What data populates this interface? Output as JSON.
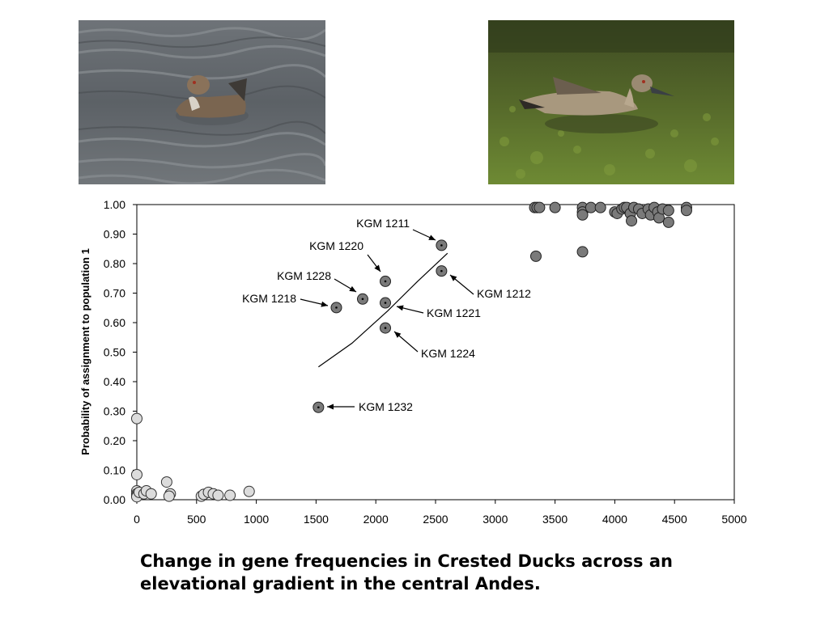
{
  "photos": [
    {
      "name": "crested-duck-photo-grey-water",
      "icon": "duck-on-grey-water-photo"
    },
    {
      "name": "crested-duck-photo-green-water",
      "icon": "duck-on-green-water-photo"
    }
  ],
  "caption": {
    "line1": "Change in gene frequencies in Crested Ducks across an",
    "line2": "elevational gradient in the central Andes."
  },
  "chart_data": {
    "type": "scatter",
    "title": "",
    "xlabel": "",
    "ylabel": "Probability of assignment to population 1",
    "xlim": [
      0,
      5000
    ],
    "ylim": [
      0,
      1
    ],
    "x_ticks": [
      "0",
      "500",
      "1000",
      "1500",
      "2000",
      "2500",
      "3000",
      "3500",
      "4000",
      "4500",
      "5000"
    ],
    "y_ticks": [
      "0.00",
      "0.10",
      "0.20",
      "0.30",
      "0.40",
      "0.50",
      "0.60",
      "0.70",
      "0.80",
      "0.90",
      "1.00"
    ],
    "grid": false,
    "colors": {
      "low": "#dcdcdc",
      "high": "#7a7a7a",
      "labelled": "#7a7a7a"
    },
    "series": [
      {
        "group": "low-elevation",
        "points": [
          [
            0,
            0.275
          ],
          [
            0,
            0.085
          ],
          [
            0,
            0.03
          ],
          [
            0,
            0.02
          ],
          [
            0,
            0.015
          ],
          [
            0,
            0.01
          ],
          [
            20,
            0.025
          ],
          [
            60,
            0.02
          ],
          [
            80,
            0.03
          ],
          [
            120,
            0.02
          ],
          [
            250,
            0.06
          ],
          [
            280,
            0.02
          ],
          [
            270,
            0.012
          ],
          [
            540,
            0.012
          ],
          [
            560,
            0.018
          ],
          [
            600,
            0.025
          ],
          [
            640,
            0.02
          ],
          [
            680,
            0.015
          ],
          [
            780,
            0.015
          ],
          [
            940,
            0.028
          ]
        ]
      },
      {
        "group": "high-elevation",
        "points": [
          [
            3330,
            0.99
          ],
          [
            3350,
            0.99
          ],
          [
            3370,
            0.99
          ],
          [
            3500,
            0.99
          ],
          [
            3340,
            0.825
          ],
          [
            3730,
            0.84
          ],
          [
            3730,
            0.99
          ],
          [
            3730,
            0.975
          ],
          [
            3730,
            0.965
          ],
          [
            3800,
            0.99
          ],
          [
            3880,
            0.99
          ],
          [
            4000,
            0.975
          ],
          [
            4020,
            0.97
          ],
          [
            4060,
            0.985
          ],
          [
            4080,
            0.99
          ],
          [
            4100,
            0.99
          ],
          [
            4130,
            0.97
          ],
          [
            4140,
            0.945
          ],
          [
            4160,
            0.99
          ],
          [
            4200,
            0.985
          ],
          [
            4230,
            0.97
          ],
          [
            4280,
            0.985
          ],
          [
            4300,
            0.965
          ],
          [
            4330,
            0.99
          ],
          [
            4360,
            0.975
          ],
          [
            4370,
            0.955
          ],
          [
            4400,
            0.985
          ],
          [
            4450,
            0.94
          ],
          [
            4450,
            0.98
          ],
          [
            4600,
            0.99
          ],
          [
            4600,
            0.98
          ]
        ]
      },
      {
        "group": "labelled",
        "points": [
          {
            "label": "KGM 1211",
            "x": 2550,
            "y": 0.862
          },
          {
            "label": "KGM 1220",
            "x": 2080,
            "y": 0.74
          },
          {
            "label": "KGM 1228",
            "x": 1890,
            "y": 0.68
          },
          {
            "label": "KGM 1218",
            "x": 1670,
            "y": 0.651
          },
          {
            "label": "KGM 1212",
            "x": 2550,
            "y": 0.775
          },
          {
            "label": "KGM 1221",
            "x": 2080,
            "y": 0.667
          },
          {
            "label": "KGM 1224",
            "x": 2080,
            "y": 0.582
          },
          {
            "label": "KGM 1232",
            "x": 1520,
            "y": 0.313
          }
        ]
      }
    ],
    "trend_line": [
      [
        1520,
        0.45
      ],
      [
        1800,
        0.53
      ],
      [
        2100,
        0.64
      ],
      [
        2350,
        0.74
      ],
      [
        2600,
        0.835
      ]
    ]
  }
}
